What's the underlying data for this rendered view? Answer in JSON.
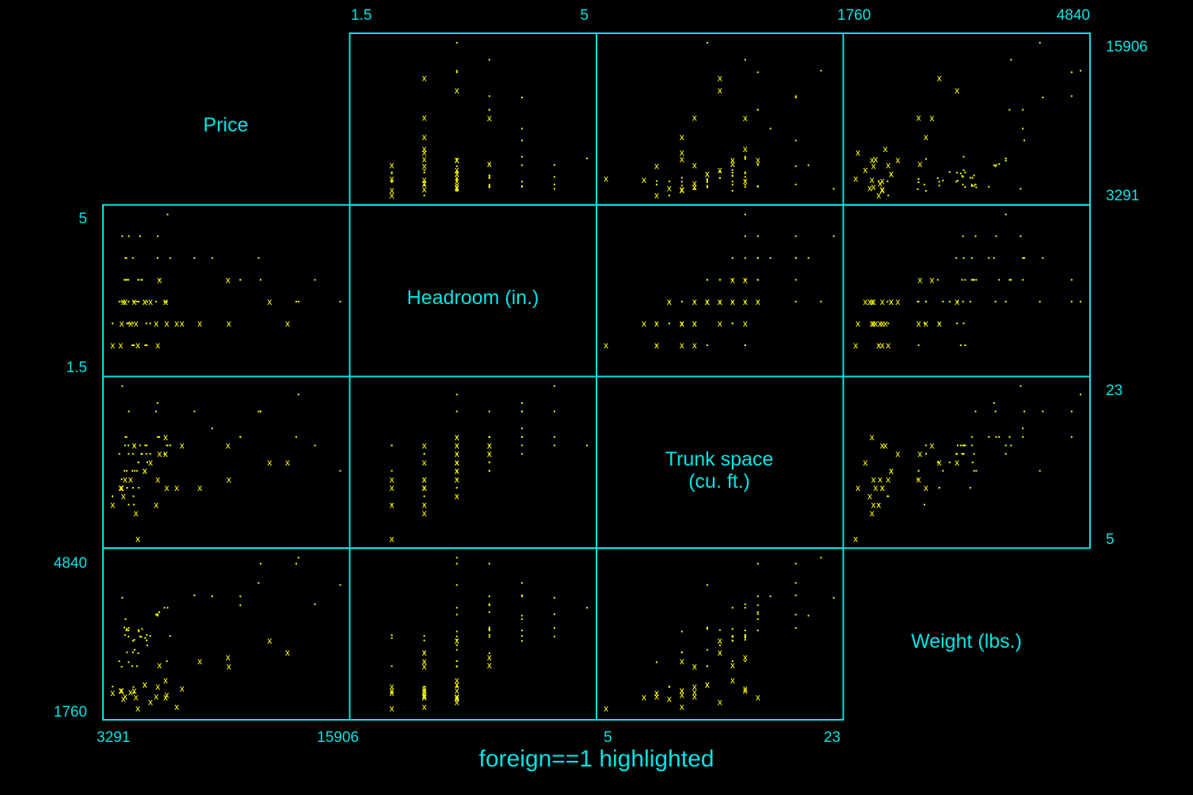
{
  "chart_data": {
    "type": "scatter",
    "subtitle": "foreign==1 highlighted",
    "layout": "upper-and-lower-triangle scatterplot matrix",
    "colors": {
      "frame": "#00e5e5",
      "points": "#ffff00",
      "background": "#000000"
    },
    "variables": [
      {
        "name": "price",
        "label": "Price",
        "range": [
          3291,
          15906
        ],
        "ticks": [
          "3291",
          "15906"
        ]
      },
      {
        "name": "headroom",
        "label": "Headroom (in.)",
        "range": [
          1.5,
          5
        ],
        "ticks": [
          "1.5",
          "5"
        ]
      },
      {
        "name": "trunk",
        "label_lines": [
          "Trunk space",
          "(cu. ft.)"
        ],
        "range": [
          5,
          23
        ],
        "ticks": [
          "5",
          "23"
        ]
      },
      {
        "name": "weight",
        "label": "Weight (lbs.)",
        "range": [
          1760,
          4840
        ],
        "ticks": [
          "1760",
          "4840"
        ]
      }
    ],
    "markers": {
      "domestic": ".",
      "foreign": "x"
    },
    "points": [
      [
        4099,
        2.5,
        11,
        2930,
        0
      ],
      [
        4749,
        3.0,
        11,
        3350,
        0
      ],
      [
        3799,
        3.0,
        12,
        2640,
        0
      ],
      [
        4816,
        4.5,
        16,
        3250,
        0
      ],
      [
        7827,
        4.0,
        20,
        4080,
        0
      ],
      [
        5788,
        4.0,
        21,
        3670,
        0
      ],
      [
        4453,
        3.0,
        10,
        2230,
        0
      ],
      [
        5189,
        2.0,
        16,
        3280,
        0
      ],
      [
        10372,
        3.5,
        17,
        3880,
        0
      ],
      [
        4082,
        3.5,
        13,
        3400,
        0
      ],
      [
        11385,
        4.0,
        20,
        4330,
        0
      ],
      [
        14500,
        3.5,
        16,
        3900,
        0
      ],
      [
        15906,
        3.0,
        13,
        4290,
        0
      ],
      [
        3299,
        2.0,
        9,
        2110,
        1
      ],
      [
        5705,
        3.0,
        20,
        3690,
        0
      ],
      [
        4504,
        3.0,
        16,
        3180,
        0
      ],
      [
        5104,
        2.0,
        16,
        3220,
        0
      ],
      [
        3667,
        3.0,
        15,
        2750,
        0
      ],
      [
        3955,
        3.5,
        13,
        3430,
        0
      ],
      [
        3984,
        3.5,
        16,
        3280,
        0
      ],
      [
        4010,
        4.0,
        17,
        3600,
        0
      ],
      [
        5886,
        3.5,
        17,
        3740,
        0
      ],
      [
        6342,
        5.0,
        16,
        3830,
        0
      ],
      [
        4389,
        2.0,
        13,
        2650,
        0
      ],
      [
        4187,
        2.5,
        9,
        2730,
        0
      ],
      [
        11497,
        3.5,
        20,
        4720,
        0
      ],
      [
        13594,
        3.0,
        22,
        4840,
        0
      ],
      [
        13466,
        3.0,
        17,
        4720,
        0
      ],
      [
        3829,
        4.5,
        23,
        4030,
        0
      ],
      [
        5379,
        2.5,
        15,
        3260,
        0
      ],
      [
        6165,
        3.0,
        15,
        3830,
        0
      ],
      [
        4516,
        3.0,
        13,
        2980,
        0
      ],
      [
        6303,
        3.0,
        16,
        2750,
        0
      ],
      [
        3291,
        2.5,
        10,
        2240,
        0
      ],
      [
        8814,
        4.0,
        18,
        4060,
        0
      ],
      [
        5172,
        2.5,
        15,
        3170,
        0
      ],
      [
        4733,
        3.5,
        14,
        3380,
        0
      ],
      [
        4890,
        3.5,
        15,
        3240,
        0
      ],
      [
        4181,
        3.0,
        15,
        3250,
        0
      ],
      [
        4195,
        4.5,
        20,
        3420,
        0
      ],
      [
        10371,
        3.5,
        17,
        4060,
        0
      ],
      [
        4647,
        3.0,
        13,
        2650,
        0
      ],
      [
        4425,
        2.5,
        11,
        2930,
        0
      ],
      [
        4482,
        2.0,
        9,
        2110,
        0
      ],
      [
        6486,
        4.0,
        16,
        3260,
        0
      ],
      [
        4060,
        4.0,
        17,
        3370,
        0
      ],
      [
        5798,
        4.5,
        17,
        3700,
        0
      ],
      [
        4934,
        3.5,
        15,
        3400,
        0
      ],
      [
        5222,
        3.0,
        14,
        3070,
        0
      ],
      [
        4723,
        3.5,
        14,
        2910,
        0
      ],
      [
        4424,
        4.0,
        15,
        3160,
        0
      ],
      [
        4172,
        3.5,
        16,
        3370,
        0
      ],
      [
        9690,
        3.5,
        16,
        2830,
        1
      ],
      [
        6295,
        2.5,
        11,
        2070,
        1
      ],
      [
        9735,
        2.5,
        12,
        2650,
        1
      ],
      [
        6229,
        3.0,
        15,
        2370,
        1
      ],
      [
        4589,
        2.5,
        8,
        2020,
        1
      ],
      [
        5079,
        3.0,
        13,
        2280,
        1
      ],
      [
        8129,
        2.5,
        11,
        2750,
        1
      ],
      [
        4296,
        2.5,
        12,
        2130,
        1
      ],
      [
        5799,
        2.0,
        12,
        2240,
        1
      ],
      [
        4499,
        3.0,
        16,
        2160,
        1
      ],
      [
        3995,
        3.0,
        12,
        2040,
        1
      ],
      [
        12990,
        2.5,
        14,
        2930,
        1
      ],
      [
        3895,
        3.0,
        10,
        1990,
        1
      ],
      [
        3798,
        2.5,
        11,
        2160,
        1
      ],
      [
        5899,
        3.5,
        15,
        2670,
        1
      ],
      [
        3748,
        2.0,
        11,
        2160,
        1
      ],
      [
        5719,
        2.5,
        9,
        2040,
        1
      ],
      [
        7140,
        2.5,
        16,
        2200,
        1
      ],
      [
        5397,
        3.0,
        14,
        1930,
        1
      ],
      [
        4697,
        2.0,
        5,
        1800,
        1
      ],
      [
        6850,
        2.5,
        11,
        1830,
        1
      ],
      [
        11995,
        3.0,
        14,
        3170,
        1
      ],
      [
        6229,
        3.0,
        17,
        2020,
        1
      ],
      [
        5079,
        3.0,
        13,
        2280,
        1
      ]
    ]
  }
}
